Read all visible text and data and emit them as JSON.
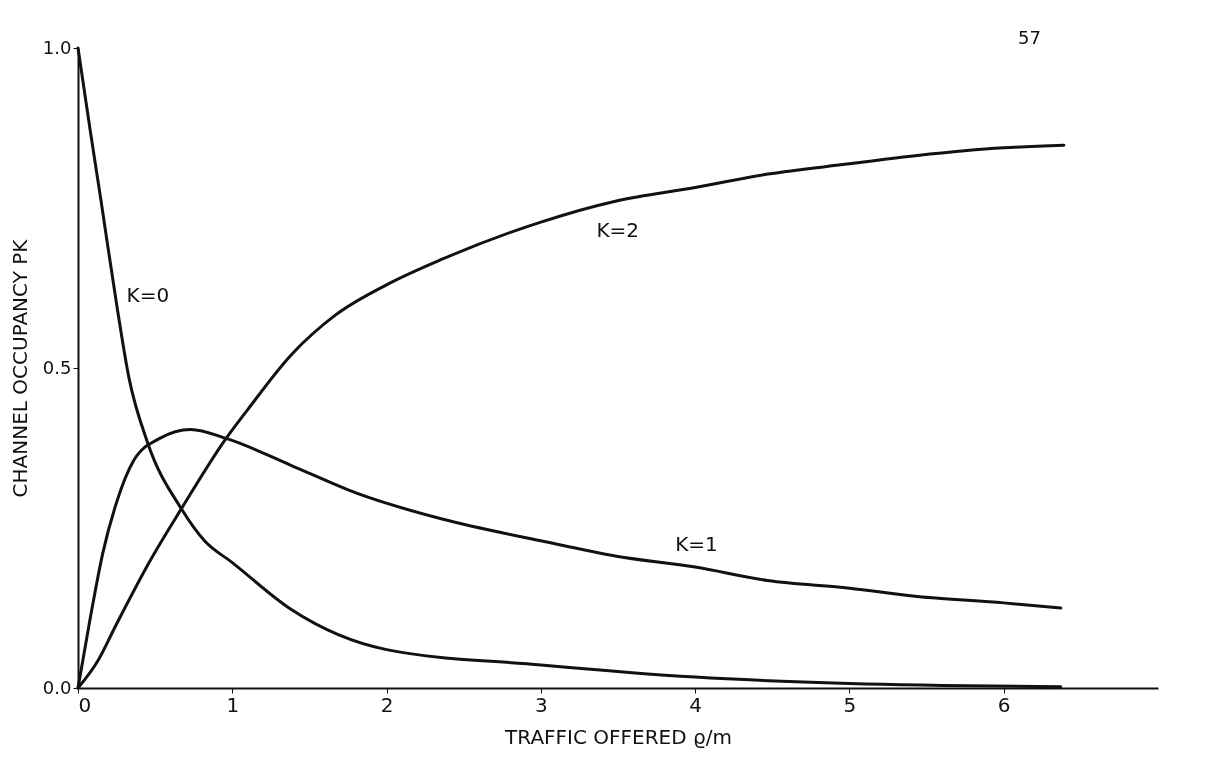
{
  "chart_data": {
    "type": "line",
    "xlabel": "TRAFFIC OFFERED ϱ/m",
    "ylabel": "CHANNEL OCCUPANCY PK",
    "annotations": [
      "57"
    ],
    "xlim": [
      0,
      7
    ],
    "xticks": [
      0,
      1,
      2,
      3,
      4,
      5,
      6
    ],
    "ylim": [
      0,
      1
    ],
    "yticks": [
      {
        "value": 0,
        "label": "0.0"
      },
      {
        "value": 0.5,
        "label": "0.5"
      },
      {
        "value": 1,
        "label": "1.0"
      }
    ],
    "grid": false,
    "legend": false,
    "marker": "none",
    "line_style": "solid",
    "series": [
      {
        "name": "K=0",
        "color": "#111111",
        "x": [
          0,
          0.08,
          0.15,
          0.25,
          0.33,
          0.45,
          0.67,
          0.82,
          1.0,
          1.38,
          2.0,
          3.0,
          4.0,
          5.0,
          6.37
        ],
        "values": [
          1.0,
          0.87,
          0.76,
          0.6,
          0.485,
          0.384,
          0.28,
          0.23,
          0.196,
          0.123,
          0.06,
          0.036,
          0.017,
          0.007,
          0.002
        ]
      },
      {
        "name": "K=1",
        "color": "#111111",
        "x": [
          0,
          0.08,
          0.16,
          0.25,
          0.36,
          0.53,
          0.73,
          0.96,
          1.38,
          1.81,
          2.36,
          3.0,
          3.49,
          4.0,
          4.47,
          5.0,
          5.44,
          6.0,
          6.37
        ],
        "values": [
          0,
          0.11,
          0.21,
          0.29,
          0.355,
          0.39,
          0.404,
          0.39,
          0.348,
          0.304,
          0.264,
          0.23,
          0.206,
          0.189,
          0.168,
          0.156,
          0.143,
          0.133,
          0.125
        ]
      },
      {
        "name": "K=2",
        "color": "#111111",
        "x": [
          0,
          0.13,
          0.25,
          0.47,
          0.67,
          0.96,
          1.1,
          1.38,
          1.67,
          2.0,
          2.36,
          3.0,
          3.49,
          4.0,
          4.47,
          5.0,
          5.44,
          6.0,
          6.39
        ],
        "values": [
          0,
          0.043,
          0.1,
          0.2,
          0.28,
          0.39,
          0.435,
          0.52,
          0.583,
          0.63,
          0.67,
          0.728,
          0.761,
          0.782,
          0.803,
          0.819,
          0.832,
          0.844,
          0.848
        ]
      }
    ]
  }
}
